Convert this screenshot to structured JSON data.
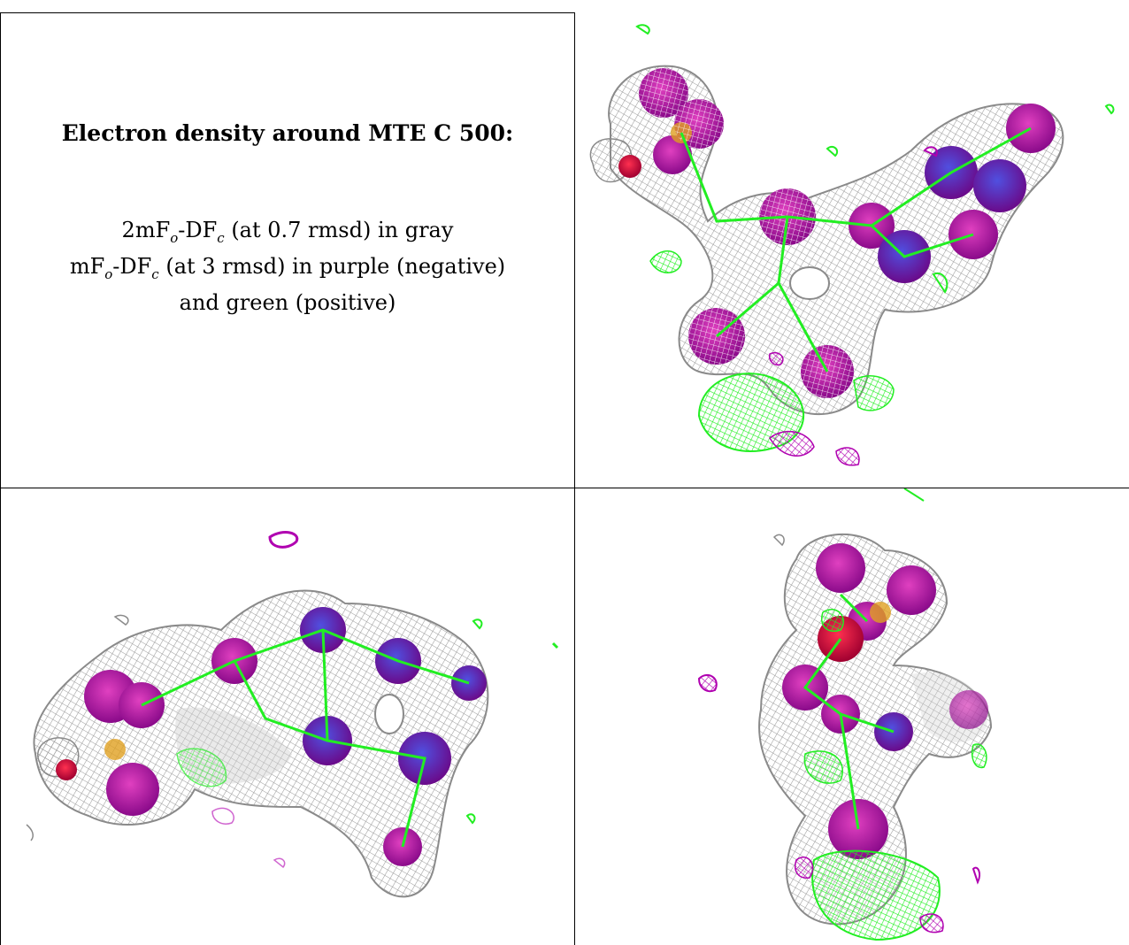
{
  "caption": {
    "title": "Electron density around MTE C 500:",
    "line1_prefix": "2mF",
    "line1_sub1": "o",
    "line1_mid": "-DF",
    "line1_sub2": "c",
    "line1_suffix": " (at 0.7 rmsd) in gray",
    "line2_prefix": "mF",
    "line2_sub1": "o",
    "line2_mid": "-DF",
    "line2_sub2": "c",
    "line2_suffix": " (at 3 rmsd) in purple (negative)",
    "line3": "and green (positive)"
  },
  "colors": {
    "mesh_gray": "#9a9a9a",
    "mesh_green": "#22ee22",
    "mesh_purple": "#b000b0",
    "atom_magenta": "#b020b0",
    "atom_blue": "#3030c0",
    "atom_red": "#d01040",
    "atom_orange": "#e0a020"
  },
  "views": [
    {
      "name": "electron-density-view-1",
      "icon": "molecule-density-icon"
    },
    {
      "name": "electron-density-view-2",
      "icon": "molecule-density-icon"
    },
    {
      "name": "electron-density-view-3",
      "icon": "molecule-density-icon"
    }
  ]
}
